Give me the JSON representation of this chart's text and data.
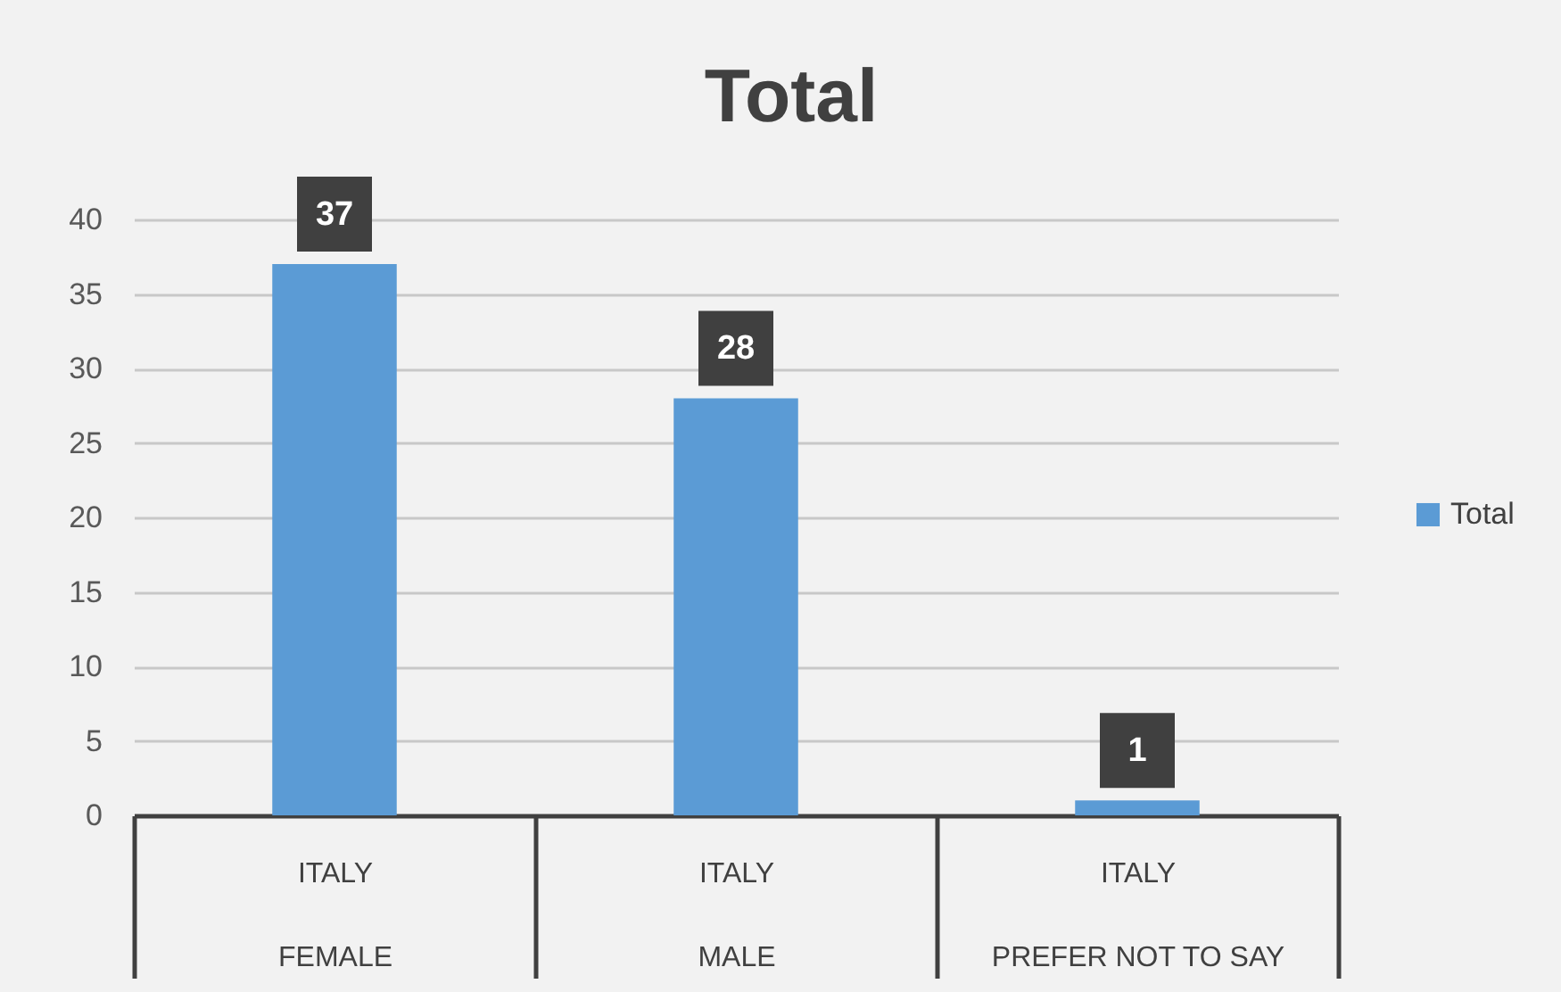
{
  "chart_data": {
    "type": "bar",
    "title": "Total",
    "categories": [
      "ITALY\nFEMALE",
      "ITALY\nMALE",
      "ITALY\nPREFER NOT TO SAY"
    ],
    "series": [
      {
        "name": "Total",
        "color": "#5b9bd5",
        "values": [
          37,
          28,
          1
        ]
      }
    ],
    "ylim": [
      0,
      40
    ],
    "yticks": [
      0,
      5,
      10,
      15,
      20,
      25,
      30,
      35,
      40
    ],
    "grid": "y",
    "legend": "right",
    "data_labels": true
  }
}
